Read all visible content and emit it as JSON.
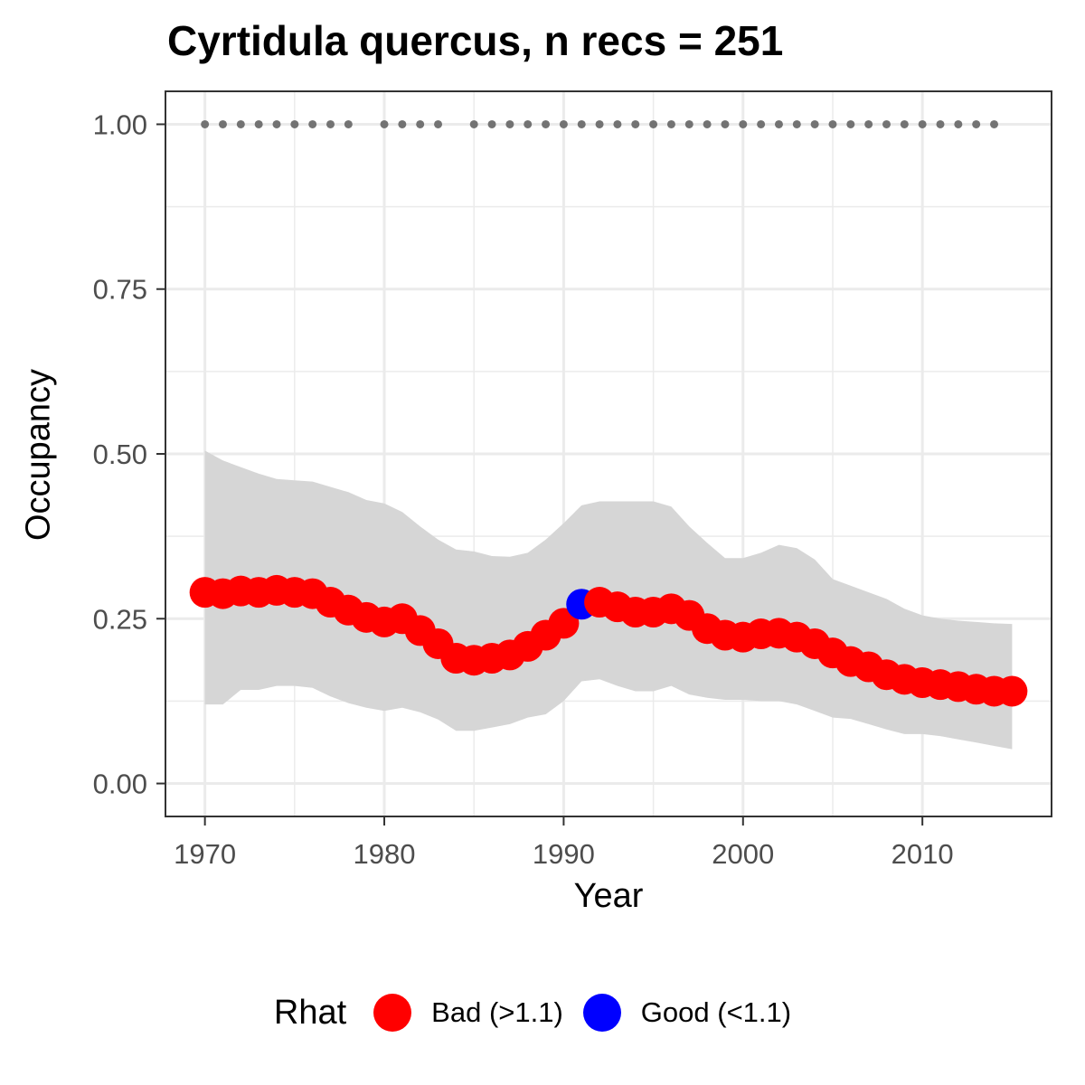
{
  "chart_data": {
    "type": "line",
    "title": "Cyrtidula quercus, n recs = 251",
    "xlabel": "Year",
    "ylabel": "Occupancy",
    "xlim": [
      1967.8,
      2017.2
    ],
    "ylim": [
      -0.05,
      1.05
    ],
    "x_ticks": [
      1970,
      1980,
      1990,
      2000,
      2010
    ],
    "x_tick_labels": [
      "1970",
      "1980",
      "1990",
      "2000",
      "2010"
    ],
    "y_ticks": [
      0,
      0.25,
      0.5,
      0.75,
      1.0
    ],
    "y_tick_labels": [
      "0.00",
      "0.25",
      "0.50",
      "0.75",
      "1.00"
    ],
    "grid": true,
    "years": [
      1970,
      1971,
      1972,
      1973,
      1974,
      1975,
      1976,
      1977,
      1978,
      1979,
      1980,
      1981,
      1982,
      1983,
      1984,
      1985,
      1986,
      1987,
      1988,
      1989,
      1990,
      1991,
      1992,
      1993,
      1994,
      1995,
      1996,
      1997,
      1998,
      1999,
      2000,
      2001,
      2002,
      2003,
      2004,
      2005,
      2006,
      2007,
      2008,
      2009,
      2010,
      2011,
      2012,
      2013,
      2014,
      2015
    ],
    "occupancy": [
      0.29,
      0.288,
      0.292,
      0.29,
      0.293,
      0.29,
      0.288,
      0.275,
      0.263,
      0.252,
      0.245,
      0.25,
      0.232,
      0.212,
      0.19,
      0.187,
      0.19,
      0.195,
      0.208,
      0.225,
      0.243,
      0.272,
      0.275,
      0.268,
      0.26,
      0.26,
      0.265,
      0.255,
      0.235,
      0.225,
      0.222,
      0.227,
      0.228,
      0.222,
      0.212,
      0.198,
      0.185,
      0.177,
      0.165,
      0.158,
      0.153,
      0.15,
      0.147,
      0.143,
      0.14,
      0.14
    ],
    "upper_ci": [
      0.505,
      0.49,
      0.48,
      0.47,
      0.462,
      0.46,
      0.458,
      0.45,
      0.442,
      0.43,
      0.425,
      0.412,
      0.39,
      0.37,
      0.355,
      0.352,
      0.345,
      0.344,
      0.35,
      0.37,
      0.395,
      0.422,
      0.428,
      0.428,
      0.428,
      0.428,
      0.42,
      0.39,
      0.365,
      0.342,
      0.342,
      0.35,
      0.362,
      0.357,
      0.34,
      0.31,
      0.3,
      0.29,
      0.28,
      0.265,
      0.255,
      0.25,
      0.247,
      0.245,
      0.243,
      0.242
    ],
    "lower_ci": [
      0.12,
      0.12,
      0.142,
      0.142,
      0.148,
      0.148,
      0.145,
      0.132,
      0.122,
      0.115,
      0.11,
      0.115,
      0.108,
      0.097,
      0.08,
      0.08,
      0.085,
      0.09,
      0.1,
      0.105,
      0.125,
      0.155,
      0.158,
      0.148,
      0.14,
      0.14,
      0.148,
      0.135,
      0.13,
      0.127,
      0.127,
      0.125,
      0.125,
      0.12,
      0.11,
      0.1,
      0.098,
      0.09,
      0.082,
      0.075,
      0.075,
      0.072,
      0.067,
      0.062,
      0.057,
      0.052
    ],
    "rhat_class": [
      "Bad",
      "Bad",
      "Bad",
      "Bad",
      "Bad",
      "Bad",
      "Bad",
      "Bad",
      "Bad",
      "Bad",
      "Bad",
      "Bad",
      "Bad",
      "Bad",
      "Bad",
      "Bad",
      "Bad",
      "Bad",
      "Bad",
      "Bad",
      "Bad",
      "Good",
      "Bad",
      "Bad",
      "Bad",
      "Bad",
      "Bad",
      "Bad",
      "Bad",
      "Bad",
      "Bad",
      "Bad",
      "Bad",
      "Bad",
      "Bad",
      "Bad",
      "Bad",
      "Bad",
      "Bad",
      "Bad",
      "Bad",
      "Bad",
      "Bad",
      "Bad",
      "Bad",
      "Bad"
    ],
    "record_years": [
      1970,
      1971,
      1972,
      1973,
      1974,
      1975,
      1976,
      1977,
      1978,
      1980,
      1981,
      1982,
      1983,
      1985,
      1986,
      1987,
      1988,
      1989,
      1990,
      1991,
      1992,
      1993,
      1994,
      1995,
      1996,
      1997,
      1998,
      1999,
      2000,
      2001,
      2002,
      2003,
      2004,
      2005,
      2006,
      2007,
      2008,
      2009,
      2010,
      2011,
      2012,
      2013,
      2014
    ],
    "record_y": 1.0,
    "legend": {
      "title": "Rhat",
      "position": "bottom",
      "items": [
        {
          "label": "Bad (>1.1)",
          "color": "#ff0000"
        },
        {
          "label": "Good (<1.1)",
          "color": "#0000ff"
        }
      ]
    },
    "colors": {
      "bad": "#ff0000",
      "good": "#0000ff",
      "ci_band": "#d6d6d6",
      "record_dots": "#737373",
      "grid": "#ebebeb",
      "axis_text": "#4d4d4d"
    }
  }
}
